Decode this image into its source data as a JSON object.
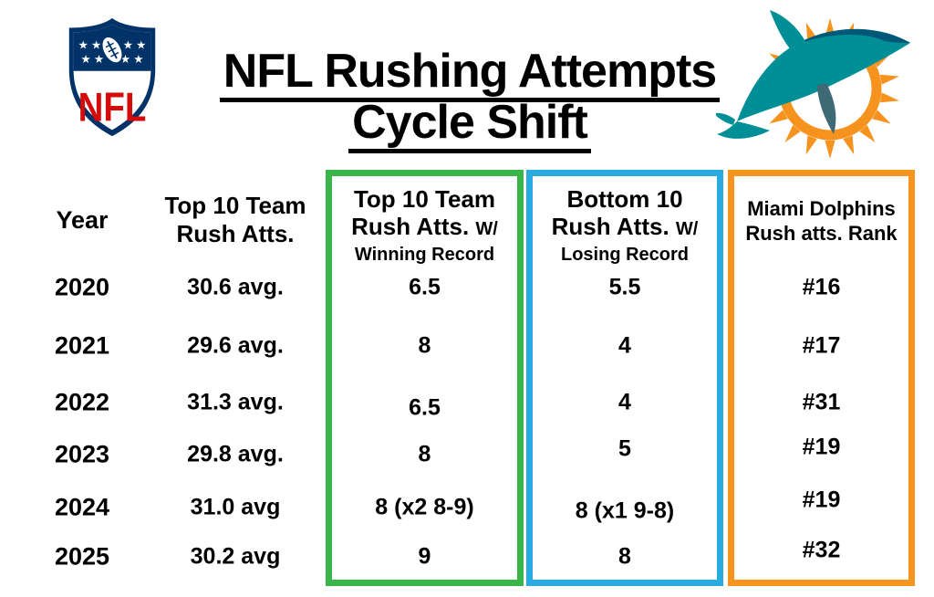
{
  "title": {
    "line1": "NFL Rushing Attempts",
    "line2": "Cycle Shift"
  },
  "logos": {
    "left": "nfl-shield-logo",
    "right": "miami-dolphins-logo"
  },
  "colors": {
    "winning_box_green": "#3AB54A",
    "losing_box_blue": "#29ABE2",
    "dolphins_box_orange": "#F7941E",
    "nfl_blue": "#013369",
    "nfl_red": "#D50A0A",
    "dolphins_aqua": "#008E97",
    "dolphins_marine": "#005778",
    "dolphins_orange": "#F6921E"
  },
  "table": {
    "headers": {
      "year": "Year",
      "top10_line1": "Top 10 Team",
      "top10_line2": "Rush Atts.",
      "win_line1": "Top 10 Team",
      "win_line2": "Rush Atts.",
      "win_line2_suffix": "W/",
      "win_line3": "Winning Record",
      "lose_line1": "Bottom 10",
      "lose_line2": "Rush Atts.",
      "lose_line2_suffix": "W/",
      "lose_line3": "Losing Record",
      "rank_line1": "Miami Dolphins",
      "rank_line2": "Rush atts. Rank"
    },
    "rows": [
      {
        "year": "2020",
        "top10": "30.6 avg.",
        "winning": "6.5",
        "losing": "5.5",
        "rank": "#16"
      },
      {
        "year": "2021",
        "top10": "29.6 avg.",
        "winning": "8",
        "losing": "4",
        "rank": "#17"
      },
      {
        "year": "2022",
        "top10": "31.3 avg.",
        "winning": "6.5",
        "losing": "4",
        "rank": "#31"
      },
      {
        "year": "2023",
        "top10": "29.8 avg.",
        "winning": "8",
        "losing": "5",
        "rank": "#19"
      },
      {
        "year": "2024",
        "top10": "31.0 avg",
        "winning": "8 (x2 8-9)",
        "losing": "8 (x1 9-8)",
        "rank": "#19"
      },
      {
        "year": "2025",
        "top10": "30.2 avg",
        "winning": "9",
        "losing": "8",
        "rank": "#32"
      }
    ]
  },
  "chart_data": {
    "type": "table",
    "title": "NFL Rushing Attempts Cycle Shift",
    "columns": [
      "Year",
      "Top 10 Team Rush Atts.",
      "Top 10 Team Rush Atts. W/ Winning Record",
      "Bottom 10 Rush Atts. W/ Losing Record",
      "Miami Dolphins Rush atts. Rank"
    ],
    "rows": [
      [
        "2020",
        "30.6 avg.",
        "6.5",
        "5.5",
        "#16"
      ],
      [
        "2021",
        "29.6 avg.",
        "8",
        "4",
        "#17"
      ],
      [
        "2022",
        "31.3 avg.",
        "6.5",
        "4",
        "#31"
      ],
      [
        "2023",
        "29.8 avg.",
        "8",
        "5",
        "#19"
      ],
      [
        "2024",
        "31.0 avg",
        "8 (x2 8-9)",
        "8 (x1 9-8)",
        "#19"
      ],
      [
        "2025",
        "30.2 avg",
        "9",
        "8",
        "#32"
      ]
    ],
    "notes": {
      "top10_avg_years_with_period": [
        "2020",
        "2021",
        "2022",
        "2023"
      ],
      "winning_losing_values_are_counts_of_teams": true
    }
  }
}
